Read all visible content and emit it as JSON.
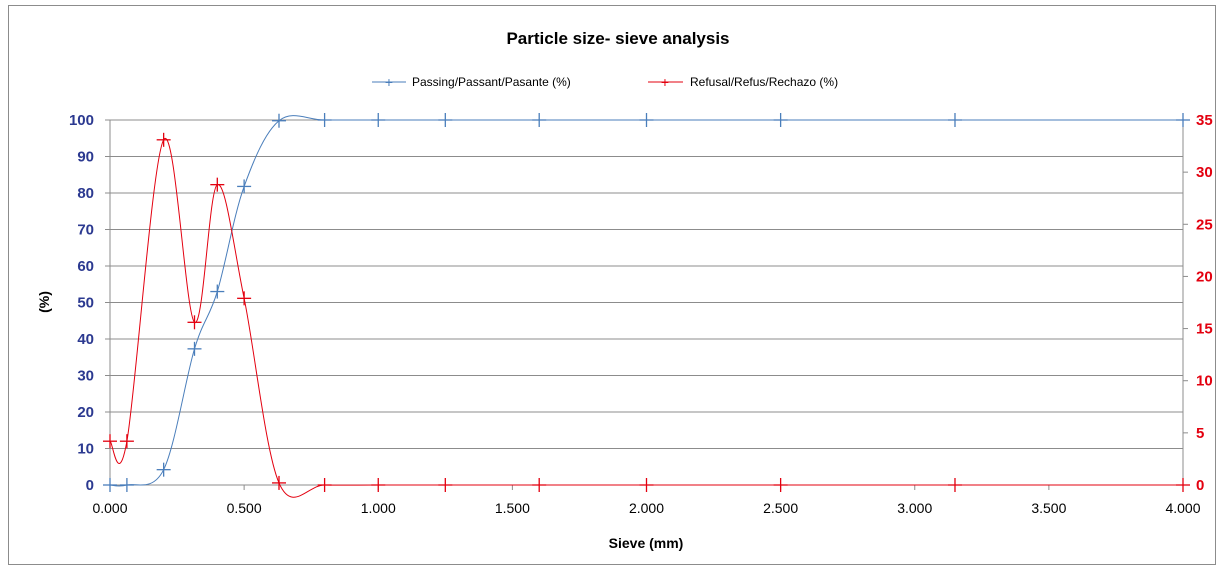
{
  "chart_data": {
    "type": "line",
    "title": "Particle size- sieve analysis",
    "xlabel": "Sieve (mm)",
    "ylabel": "(%)",
    "xlim": [
      0,
      4
    ],
    "ylim_left": [
      0,
      100
    ],
    "ylim_right": [
      0,
      35
    ],
    "x_ticks": [
      "0.000",
      "0.500",
      "1.000",
      "1.500",
      "2.000",
      "2.500",
      "3.000",
      "3.500",
      "4.000"
    ],
    "y_left_ticks": [
      "0",
      "10",
      "20",
      "30",
      "40",
      "50",
      "60",
      "70",
      "80",
      "90",
      "100"
    ],
    "y_right_ticks": [
      "0",
      "5",
      "10",
      "15",
      "20",
      "25",
      "30",
      "35"
    ],
    "grid": true,
    "legend_position": "top",
    "series": [
      {
        "name": "Passing/Passant/Pasante (%)",
        "axis": "left",
        "color": "#4a7ebb",
        "points": [
          [
            0.0,
            0.0
          ],
          [
            0.063,
            0.0
          ],
          [
            0.2,
            4.2
          ],
          [
            0.315,
            37.3
          ],
          [
            0.4,
            53.0
          ],
          [
            0.5,
            81.8
          ],
          [
            0.63,
            99.8
          ],
          [
            0.8,
            100
          ],
          [
            1.0,
            100
          ],
          [
            1.25,
            100
          ],
          [
            1.6,
            100
          ],
          [
            2.0,
            100
          ],
          [
            2.5,
            100
          ],
          [
            3.15,
            100
          ],
          [
            4.0,
            100
          ]
        ]
      },
      {
        "name": "Refusal/Refus/Rechazo (%)",
        "axis": "right",
        "color": "#e3000f",
        "points": [
          [
            0.0,
            4.2
          ],
          [
            0.063,
            4.2
          ],
          [
            0.2,
            33.1
          ],
          [
            0.315,
            15.6
          ],
          [
            0.4,
            28.8
          ],
          [
            0.5,
            17.9
          ],
          [
            0.63,
            0.2
          ],
          [
            0.8,
            0.0
          ],
          [
            1.0,
            0.0
          ],
          [
            1.25,
            0.0
          ],
          [
            1.6,
            0.0
          ],
          [
            2.0,
            0.0
          ],
          [
            2.5,
            0.0
          ],
          [
            3.15,
            0.0
          ],
          [
            4.0,
            0.0
          ]
        ]
      }
    ]
  }
}
